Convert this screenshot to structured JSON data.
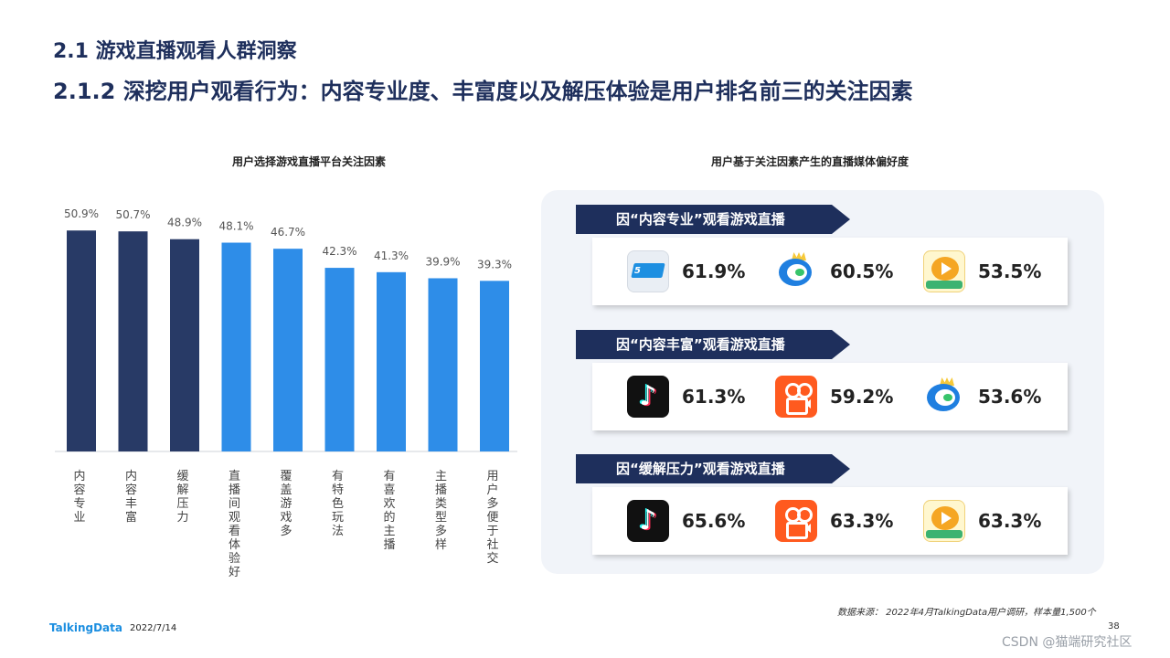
{
  "header": {
    "title1": "2.1 游戏直播观看人群洞察",
    "title2": "2.1.2 深挖用户观看行为：内容专业度、丰富度以及解压体验是用户排名前三的关注因素"
  },
  "chart_data": {
    "type": "bar",
    "title": "用户选择游戏直播平台关注因素",
    "categories": [
      "内容专业",
      "内容丰富",
      "缓解压力",
      "直播间观看体验好",
      "覆盖游戏多",
      "有特色玩法",
      "有喜欢的主播",
      "主播类型多样",
      "用户多便于社交"
    ],
    "values": [
      50.9,
      50.7,
      48.9,
      48.1,
      46.7,
      42.3,
      41.3,
      39.9,
      39.3
    ],
    "value_labels": [
      "50.9%",
      "50.7%",
      "48.9%",
      "48.1%",
      "46.7%",
      "42.3%",
      "41.3%",
      "39.9%",
      "39.3%"
    ],
    "colors": [
      "#283a66",
      "#283a66",
      "#283a66",
      "#2e8de8",
      "#2e8de8",
      "#2e8de8",
      "#2e8de8",
      "#2e8de8",
      "#2e8de8"
    ],
    "ylim": [
      0,
      56
    ],
    "grid": false,
    "xlabel": "",
    "ylabel": ""
  },
  "right_panel": {
    "title": "用户基于关注因素产生的直播媒体偏好度",
    "groups": [
      {
        "label": "因“内容专业”观看游戏直播",
        "apps": [
          {
            "icon": "app-icon-blue-badge",
            "value": "61.9%"
          },
          {
            "icon": "app-icon-blue-ring",
            "value": "60.5%"
          },
          {
            "icon": "app-icon-orange-play",
            "value": "53.5%"
          }
        ]
      },
      {
        "label": "因“内容丰富”观看游戏直播",
        "apps": [
          {
            "icon": "app-icon-douyin",
            "value": "61.3%"
          },
          {
            "icon": "app-icon-kuaishou",
            "value": "59.2%"
          },
          {
            "icon": "app-icon-blue-ring",
            "value": "53.6%"
          }
        ]
      },
      {
        "label": "因“缓解压力”观看游戏直播",
        "apps": [
          {
            "icon": "app-icon-douyin",
            "value": "65.6%"
          },
          {
            "icon": "app-icon-kuaishou",
            "value": "63.3%"
          },
          {
            "icon": "app-icon-orange-play",
            "value": "63.3%"
          }
        ]
      }
    ]
  },
  "footer": {
    "logo": "TalkingData",
    "date": "2022/7/14",
    "source": "数据来源： 2022年4月TalkingData用户调研，样本量1,500个",
    "page": "38",
    "watermark": "CSDN @猫端研究社区"
  }
}
